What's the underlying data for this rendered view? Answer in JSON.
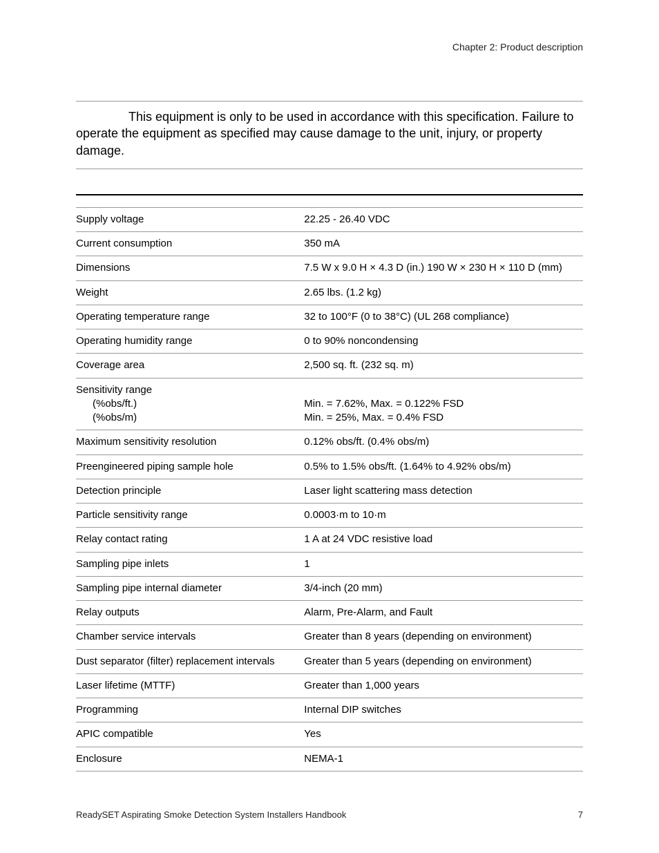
{
  "header": {
    "chapter": "Chapter 2: Product description"
  },
  "warning": {
    "text_line1": "This equipment is only to be used in accordance with this specification.",
    "text_line2": "Failure to operate the equipment as specified may cause damage to the unit, injury, or property damage."
  },
  "specs": {
    "rows": [
      {
        "label": "Supply voltage",
        "value": "22.25 - 26.40 VDC"
      },
      {
        "label": "Current consumption",
        "value": "350 mA"
      },
      {
        "label": "Dimensions",
        "value": "7.5 W x 9.0 H × 4.3 D (in.) 190 W × 230 H × 110 D (mm)"
      },
      {
        "label": "Weight",
        "value": "2.65 lbs. (1.2 kg)"
      },
      {
        "label": "Operating temperature range",
        "value": "32 to 100°F (0 to 38°C) (UL 268 compliance)"
      },
      {
        "label": "Operating humidity range",
        "value": "0 to 90% noncondensing"
      },
      {
        "label": "Coverage area",
        "value": "2,500 sq. ft. (232 sq. m)"
      },
      {
        "label": "Sensitivity range",
        "sub1": "(%obs/ft.)",
        "sub2": "(%obs/m)",
        "value_sub1": "Min. = 7.62%, Max. = 0.122% FSD",
        "value_sub2": "Min. = 25%, Max. = 0.4% FSD",
        "multi": true
      },
      {
        "label": "Maximum sensitivity resolution",
        "value": "0.12% obs/ft. (0.4% obs/m)"
      },
      {
        "label": "Preengineered piping sample hole",
        "value": "0.5% to 1.5% obs/ft. (1.64% to 4.92% obs/m)"
      },
      {
        "label": "Detection principle",
        "value": "Laser light scattering mass detection"
      },
      {
        "label": "Particle sensitivity range",
        "value": "0.0003·m to 10·m"
      },
      {
        "label": "Relay contact rating",
        "value": "1 A at 24 VDC resistive load"
      },
      {
        "label": "Sampling pipe inlets",
        "value": "1"
      },
      {
        "label": "Sampling pipe internal diameter",
        "value": "3/4-inch (20 mm)"
      },
      {
        "label": "Relay outputs",
        "value": "Alarm, Pre-Alarm, and Fault"
      },
      {
        "label": "Chamber service intervals",
        "value": "Greater than 8 years (depending on environment)"
      },
      {
        "label": "Dust separator (filter) replacement intervals",
        "value": "Greater than 5 years (depending on environment)"
      },
      {
        "label": "Laser lifetime (MTTF)",
        "value": "Greater than 1,000 years"
      },
      {
        "label": "Programming",
        "value": "Internal DIP switches"
      },
      {
        "label": "APIC compatible",
        "value": "Yes"
      },
      {
        "label": "Enclosure",
        "value": "NEMA-1"
      }
    ]
  },
  "footer": {
    "title": "ReadySET Aspirating Smoke Detection System Installers Handbook",
    "page": "7"
  },
  "colors": {
    "text": "#000000",
    "border_dark": "#000000",
    "border_light": "#999999",
    "background": "#ffffff"
  },
  "typography": {
    "body_fontsize": 15,
    "warning_fontsize": 18,
    "header_fontsize": 14,
    "footer_fontsize": 13,
    "font_family": "Arial, Helvetica, sans-serif"
  }
}
